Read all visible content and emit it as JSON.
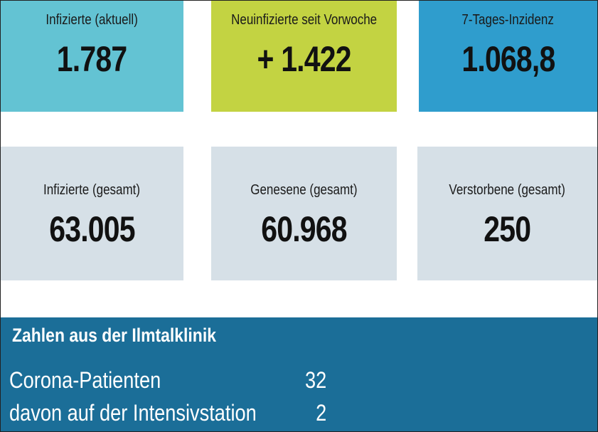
{
  "tiles_top": [
    {
      "label": "Infizierte (aktuell)",
      "value": "1.787"
    },
    {
      "label": "Neuinfizierte seit Vorwoche",
      "value": "+ 1.422"
    },
    {
      "label": "7-Tages-Inzidenz",
      "value": "1.068,8"
    }
  ],
  "tiles_bottom": [
    {
      "label": "Infizierte (gesamt)",
      "value": "63.005"
    },
    {
      "label": "Genesene (gesamt)",
      "value": "60.968"
    },
    {
      "label": "Verstorbene (gesamt)",
      "value": "250"
    }
  ],
  "clinic": {
    "title": "Zahlen aus der Ilmtalklinik",
    "rows": [
      {
        "label": "Corona-Patienten",
        "value": 32
      },
      {
        "label": "davon auf der Intensivstation",
        "value": 2
      }
    ]
  }
}
